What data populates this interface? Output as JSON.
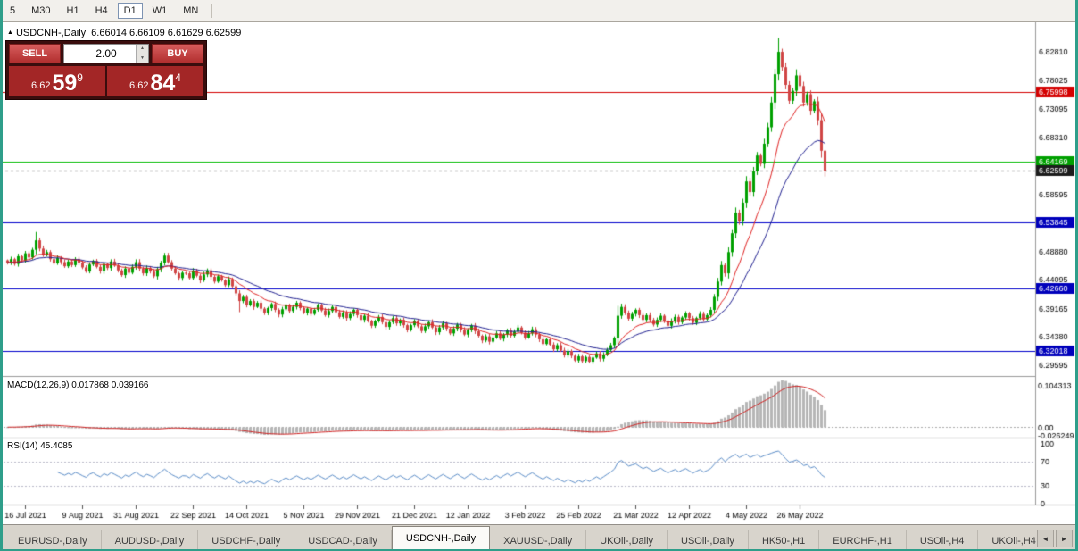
{
  "toolbar": {
    "timeframes": [
      "5",
      "M30",
      "H1",
      "H4",
      "D1",
      "W1",
      "MN"
    ],
    "active": "D1"
  },
  "trade_panel": {
    "sell_label": "SELL",
    "buy_label": "BUY",
    "volume": "2.00",
    "spin_up": "▲",
    "spin_down": "▼",
    "sell_price": {
      "prefix": "6.62",
      "big": "59",
      "sup": "9"
    },
    "buy_price": {
      "prefix": "6.62",
      "big": "84",
      "sup": "4"
    }
  },
  "tabs": {
    "labels": [
      "EURUSD-,Daily",
      "AUDUSD-,Daily",
      "USDCHF-,Daily",
      "USDCAD-,Daily",
      "USDCNH-,Daily",
      "XAUUSD-,Daily",
      "UKOil-,Daily",
      "USOil-,Daily",
      "HK50-,H1",
      "EURCHF-,H1",
      "USOil-,H4",
      "UKOil-,H4"
    ],
    "active_index": 4
  },
  "tab_bar": {
    "arrow_left": "◄",
    "arrow_right": "►"
  },
  "chart_data": {
    "type": "candlestick",
    "symbol_title": "USDCNH-,Daily",
    "ohlc_display": "6.66014 6.66109 6.61629 6.62599",
    "last_ohlc": [
      6.66014,
      6.66109,
      6.61629,
      6.62599
    ],
    "closes": [
      6.47,
      6.476,
      6.468,
      6.481,
      6.474,
      6.486,
      6.479,
      6.492,
      6.508,
      6.494,
      6.483,
      6.488,
      6.476,
      6.469,
      6.478,
      6.471,
      6.464,
      6.472,
      6.466,
      6.476,
      6.47,
      6.462,
      6.455,
      6.467,
      6.473,
      6.463,
      6.456,
      6.468,
      6.461,
      6.472,
      6.465,
      6.457,
      6.449,
      6.46,
      6.453,
      6.463,
      6.471,
      6.46,
      6.452,
      6.461,
      6.455,
      6.447,
      6.459,
      6.47,
      6.482,
      6.471,
      6.46,
      6.452,
      6.444,
      6.453,
      6.452,
      6.444,
      6.456,
      6.448,
      6.44,
      6.45,
      6.457,
      6.446,
      6.438,
      6.447,
      6.44,
      6.432,
      6.442,
      6.43,
      6.418,
      6.405,
      6.412,
      6.398,
      6.405,
      6.395,
      6.402,
      6.392,
      6.385,
      6.393,
      6.4,
      6.39,
      6.382,
      6.391,
      6.398,
      6.388,
      6.395,
      6.402,
      6.393,
      6.385,
      6.392,
      6.383,
      6.39,
      6.398,
      6.389,
      6.381,
      6.388,
      6.395,
      6.386,
      6.378,
      6.385,
      6.376,
      6.383,
      6.39,
      6.381,
      6.373,
      6.38,
      6.371,
      6.363,
      6.371,
      6.378,
      6.369,
      6.361,
      6.369,
      6.376,
      6.367,
      6.373,
      6.364,
      6.356,
      6.364,
      6.371,
      6.362,
      6.354,
      6.362,
      6.369,
      6.36,
      6.352,
      6.36,
      6.367,
      6.358,
      6.35,
      6.358,
      6.365,
      6.356,
      6.348,
      6.356,
      6.363,
      6.354,
      6.346,
      6.338,
      6.345,
      6.336,
      6.343,
      6.35,
      6.341,
      6.348,
      6.355,
      6.346,
      6.353,
      6.36,
      6.351,
      6.343,
      6.35,
      6.357,
      6.348,
      6.34,
      6.332,
      6.34,
      6.331,
      6.323,
      6.33,
      6.321,
      6.313,
      6.32,
      6.312,
      6.304,
      6.311,
      6.303,
      6.31,
      6.302,
      6.309,
      6.316,
      6.307,
      6.314,
      6.322,
      6.33,
      6.342,
      6.38,
      6.395,
      6.385,
      6.375,
      6.383,
      6.39,
      6.381,
      6.373,
      6.381,
      6.373,
      6.365,
      6.373,
      6.38,
      6.371,
      6.363,
      6.371,
      6.378,
      6.369,
      6.377,
      6.384,
      6.376,
      6.368,
      6.376,
      6.383,
      6.374,
      6.381,
      6.39,
      6.412,
      6.438,
      6.466,
      6.452,
      6.488,
      6.52,
      6.555,
      6.54,
      6.572,
      6.608,
      6.59,
      6.625,
      6.652,
      6.638,
      6.672,
      6.7,
      6.742,
      6.79,
      6.828,
      6.802,
      6.772,
      6.745,
      6.762,
      6.788,
      6.77,
      6.742,
      6.756,
      6.728,
      6.744,
      6.712,
      6.6601,
      6.626
    ],
    "wick_overrides": {
      "8": [
        0.01,
        0.002
      ],
      "65": [
        0.002,
        0.014
      ],
      "171": [
        0.008,
        0.004
      ],
      "216": [
        0.014,
        0.002
      ],
      "221": [
        0.004,
        0.002
      ]
    },
    "x_labels": [
      {
        "i": 5,
        "t": "16 Jul 2021"
      },
      {
        "i": 21,
        "t": "9 Aug 2021"
      },
      {
        "i": 36,
        "t": "31 Aug 2021"
      },
      {
        "i": 52,
        "t": "22 Sep 2021"
      },
      {
        "i": 67,
        "t": "14 Oct 2021"
      },
      {
        "i": 83,
        "t": "5 Nov 2021"
      },
      {
        "i": 98,
        "t": "29 Nov 2021"
      },
      {
        "i": 114,
        "t": "21 Dec 2021"
      },
      {
        "i": 129,
        "t": "12 Jan 2022"
      },
      {
        "i": 145,
        "t": "3 Feb 2022"
      },
      {
        "i": 160,
        "t": "25 Feb 2022"
      },
      {
        "i": 176,
        "t": "21 Mar 2022"
      },
      {
        "i": 191,
        "t": "12 Apr 2022"
      },
      {
        "i": 207,
        "t": "4 May 2022"
      },
      {
        "i": 222,
        "t": "26 May 2022"
      }
    ],
    "y_axis_labels": [
      "6.82810",
      "6.78025",
      "6.73095",
      "6.68310",
      "6.58595",
      "6.48880",
      "6.44095",
      "6.39165",
      "6.34380",
      "6.29595"
    ],
    "price_lines": [
      {
        "price": "6.75998",
        "color": "#d40000",
        "box": "#d40000",
        "dashed": false
      },
      {
        "price": "6.64169",
        "color": "#00bb00",
        "box": "#00a000",
        "dashed": false
      },
      {
        "price": "6.62599",
        "color": "#4a4a4a",
        "box": "#1c1c1c",
        "dashed": true
      },
      {
        "price": "6.53845",
        "color": "#0000cc",
        "box": "#0000bb",
        "dashed": false
      },
      {
        "price": "6.42660",
        "color": "#0000cc",
        "box": "#0000bb",
        "dashed": false
      },
      {
        "price": "6.32018",
        "color": "#0000cc",
        "box": "#0000bb",
        "dashed": false
      }
    ],
    "ma": {
      "fast_period": 12,
      "slow_period": 26
    },
    "macd": {
      "display": "MACD(12,26,9) 0.017868 0.039166",
      "axis": [
        "0.104313",
        "0.00",
        "-0.026249"
      ]
    },
    "rsi": {
      "display": "RSI(14) 45.4085",
      "period": 14,
      "axis": [
        "100",
        "70",
        "30",
        "0"
      ],
      "levels": [
        70,
        30
      ]
    },
    "colors": {
      "up": "#00a000",
      "down": "#d04545",
      "ma_fast": "#e02020",
      "ma_slow": "#1f1f90",
      "macd_hist": "#b6b6b6",
      "macd_signal": "#d02020",
      "rsi_line": "#5b8dc8",
      "rsi_level": "#b8b8c8"
    }
  }
}
